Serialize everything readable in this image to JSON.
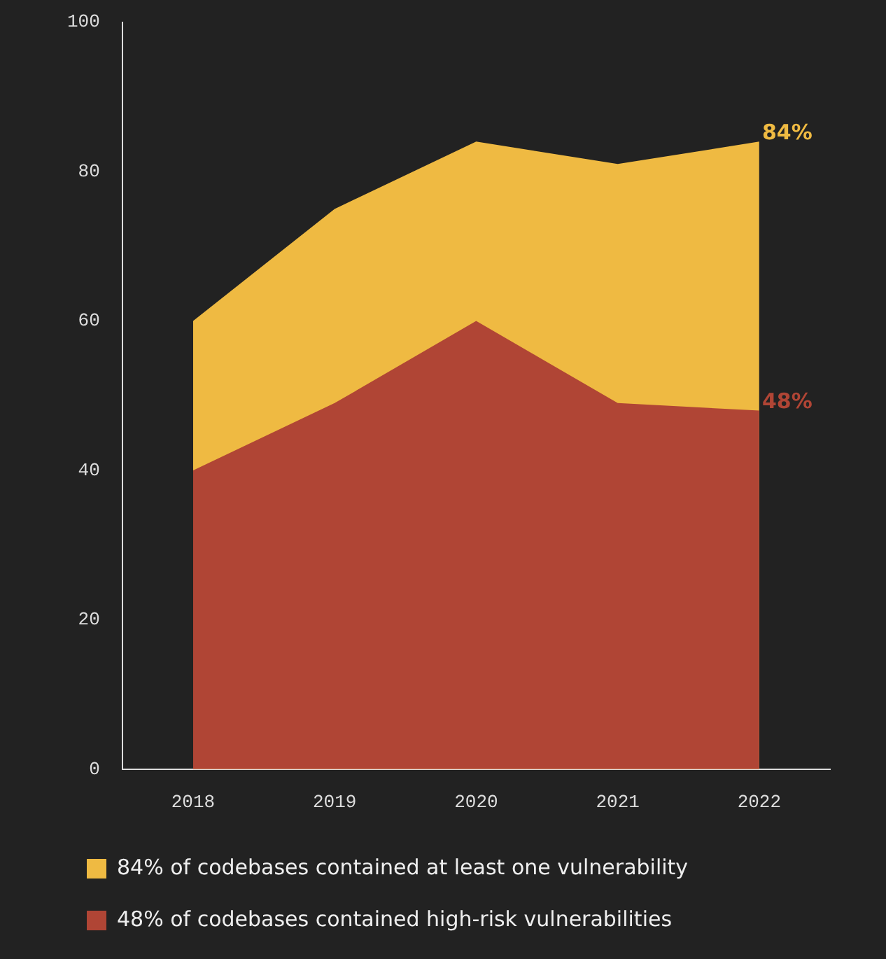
{
  "chart_data": {
    "type": "area",
    "categories": [
      "2018",
      "2019",
      "2020",
      "2021",
      "2022"
    ],
    "series": [
      {
        "name": "84% of codebases contained at least one vulnerability",
        "color": "#efba42",
        "values": [
          60,
          75,
          84,
          81,
          84
        ],
        "value_labels": [
          null,
          null,
          null,
          null,
          "84%"
        ]
      },
      {
        "name": "48% of codebases contained high-risk vulnerabilities",
        "color": "#b04535",
        "values": [
          40,
          49,
          60,
          49,
          48
        ],
        "value_labels": [
          null,
          null,
          null,
          null,
          "48%"
        ]
      }
    ],
    "ylim": [
      0,
      100
    ],
    "yticks": [
      0,
      20,
      40,
      60,
      80,
      100
    ],
    "grid": false,
    "legend": "bottom",
    "marker": "none"
  }
}
